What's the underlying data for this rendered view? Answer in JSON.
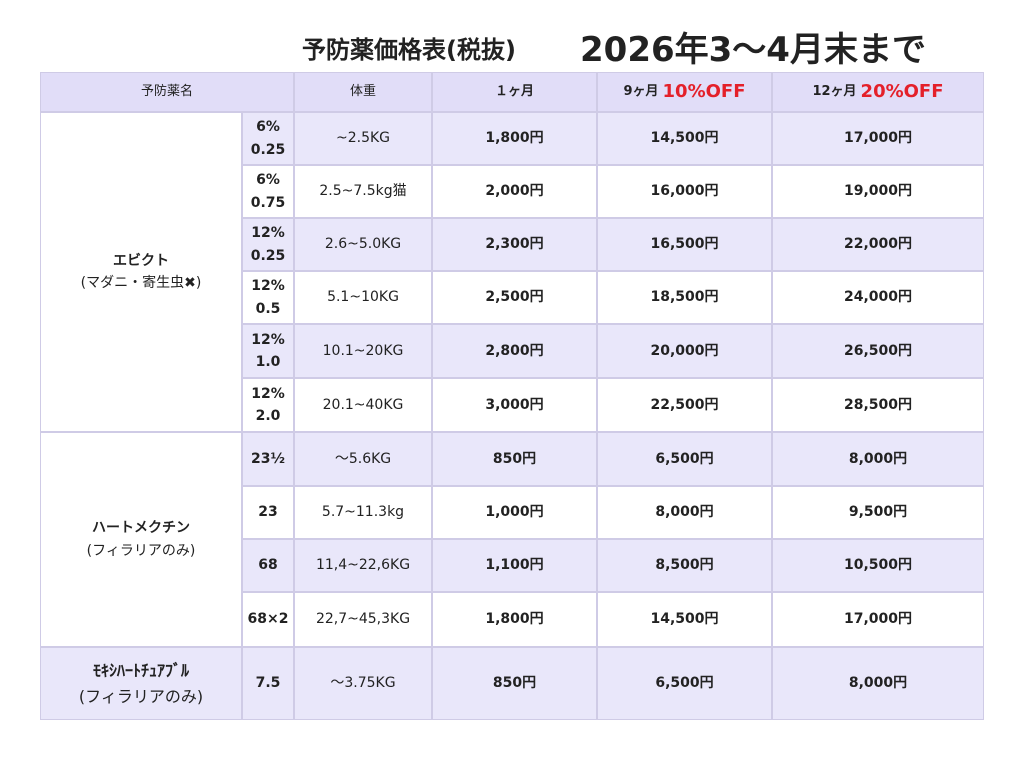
{
  "header": {
    "title": "予防薬価格表(税抜)",
    "period": "2026年3〜4月末まで"
  },
  "table": {
    "columns": {
      "name": "予防薬名",
      "weight": "体重",
      "m1": "１ヶ月",
      "m9": "9ヶ月",
      "m9_discount": "10%OFF",
      "m12": "12ヶ月",
      "m12_discount": "20%OFF"
    },
    "groups": [
      {
        "name": "エビクト",
        "note": "(マダニ・寄生虫✖)",
        "rows": [
          {
            "dose": [
              "6%",
              "0.25"
            ],
            "weight": "~2.5KG",
            "m1": "1,800円",
            "m9": "14,500円",
            "m12": "17,000円"
          },
          {
            "dose": [
              "6%",
              "0.75"
            ],
            "weight": "2.5~7.5kg猫",
            "m1": "2,000円",
            "m9": "16,000円",
            "m12": "19,000円"
          },
          {
            "dose": [
              "12%",
              "0.25"
            ],
            "weight": "2.6~5.0KG",
            "m1": "2,300円",
            "m9": "16,500円",
            "m12": "22,000円"
          },
          {
            "dose": [
              "12%",
              "0.5"
            ],
            "weight": "5.1~10KG",
            "m1": "2,500円",
            "m9": "18,500円",
            "m12": "24,000円"
          },
          {
            "dose": [
              "12%",
              "1.0"
            ],
            "weight": "10.1~20KG",
            "m1": "2,800円",
            "m9": "20,000円",
            "m12": "26,500円"
          },
          {
            "dose": [
              "12%",
              "2.0"
            ],
            "weight": "20.1~40KG",
            "m1": "3,000円",
            "m9": "22,500円",
            "m12": "28,500円"
          }
        ]
      },
      {
        "name": "ハートメクチン",
        "note": "(フィラリアのみ)",
        "rows": [
          {
            "dose": [
              "23½"
            ],
            "weight": "〜5.6KG",
            "m1": "850円",
            "m9": "6,500円",
            "m12": "8,000円"
          },
          {
            "dose": [
              "23"
            ],
            "weight": "5.7~11.3kg",
            "m1": "1,000円",
            "m9": "8,000円",
            "m12": "9,500円"
          },
          {
            "dose": [
              "68"
            ],
            "weight": "11,4~22,6KG",
            "m1": "1,100円",
            "m9": "8,500円",
            "m12": "10,500円"
          },
          {
            "dose": [
              "68×2"
            ],
            "weight": "22,7~45,3KG",
            "m1": "1,800円",
            "m9": "14,500円",
            "m12": "17,000円"
          }
        ]
      },
      {
        "name": "ﾓｷｼﾊｰﾄﾁｭｱﾌﾞﾙ",
        "note": "(フィラリアのみ)",
        "rows": [
          {
            "dose": [
              "7.5"
            ],
            "weight": "〜3.75KG",
            "m1": "850円",
            "m9": "6,500円",
            "m12": "8,000円"
          }
        ]
      }
    ]
  }
}
